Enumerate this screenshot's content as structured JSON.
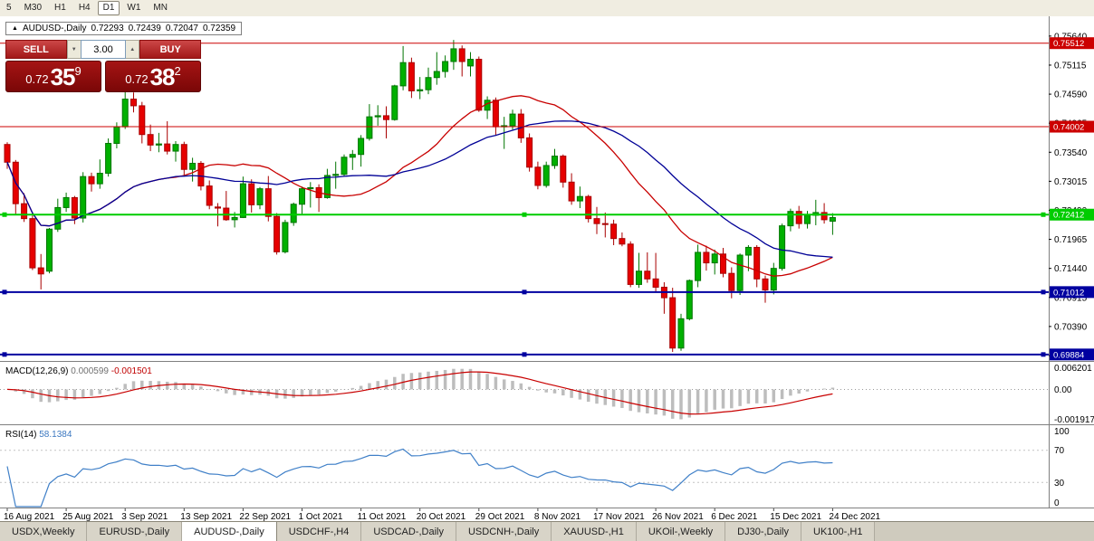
{
  "toolbar": {
    "timeframes": [
      "5",
      "M30",
      "H1",
      "H4",
      "D1",
      "W1",
      "MN"
    ],
    "active_index": 4
  },
  "chart_header": {
    "collapse_icon": "▲",
    "symbol": "AUDUSD-,Daily",
    "open": "0.72293",
    "high": "0.72439",
    "low": "0.72047",
    "close": "0.72359"
  },
  "trade_panel": {
    "sell_label": "SELL",
    "buy_label": "BUY",
    "volume": "3.00",
    "spinner_down_icon": "▼",
    "spinner_up_icon": "▲",
    "sell_price": {
      "prefix": "0.72",
      "big": "35",
      "sup": "9"
    },
    "buy_price": {
      "prefix": "0.72",
      "big": "38",
      "sup": "2"
    }
  },
  "chart_data": {
    "type": "candlestick",
    "symbol": "AUDUSD",
    "timeframe": "Daily",
    "ylim": [
      0.69783,
      0.75965
    ],
    "y_ticks": [
      "0.75640",
      "0.75115",
      "0.74590",
      "0.74065",
      "0.73540",
      "0.73015",
      "0.72490",
      "0.71965",
      "0.71440",
      "0.70915",
      "0.70390",
      "0.69865"
    ],
    "x_labels": [
      {
        "index": 0,
        "label": "16 Aug 2021"
      },
      {
        "index": 7,
        "label": "25 Aug 2021"
      },
      {
        "index": 14,
        "label": "3 Sep 2021"
      },
      {
        "index": 21,
        "label": "13 Sep 2021"
      },
      {
        "index": 28,
        "label": "22 Sep 2021"
      },
      {
        "index": 35,
        "label": "1 Oct 2021"
      },
      {
        "index": 42,
        "label": "11 Oct 2021"
      },
      {
        "index": 49,
        "label": "20 Oct 2021"
      },
      {
        "index": 56,
        "label": "29 Oct 2021"
      },
      {
        "index": 63,
        "label": "8 Nov 2021"
      },
      {
        "index": 70,
        "label": "17 Nov 2021"
      },
      {
        "index": 77,
        "label": "26 Nov 2021"
      },
      {
        "index": 84,
        "label": "6 Dec 2021"
      },
      {
        "index": 91,
        "label": "15 Dec 2021"
      },
      {
        "index": 98,
        "label": "24 Dec 2021"
      }
    ],
    "candles": [
      [
        0.7368,
        0.7372,
        0.7324,
        0.7336
      ],
      [
        0.7336,
        0.734,
        0.7242,
        0.7261
      ],
      [
        0.7261,
        0.728,
        0.7228,
        0.7234
      ],
      [
        0.7234,
        0.7243,
        0.7141,
        0.7145
      ],
      [
        0.7145,
        0.717,
        0.7106,
        0.7134
      ],
      [
        0.7139,
        0.7217,
        0.7135,
        0.7215
      ],
      [
        0.7215,
        0.727,
        0.721,
        0.7254
      ],
      [
        0.7254,
        0.7281,
        0.7246,
        0.7272
      ],
      [
        0.7272,
        0.7275,
        0.7224,
        0.7235
      ],
      [
        0.7235,
        0.7318,
        0.7227,
        0.731
      ],
      [
        0.731,
        0.7317,
        0.7283,
        0.7297
      ],
      [
        0.7297,
        0.7341,
        0.7288,
        0.7316
      ],
      [
        0.7316,
        0.7379,
        0.731,
        0.737
      ],
      [
        0.737,
        0.7408,
        0.7361,
        0.74
      ],
      [
        0.74,
        0.7478,
        0.7396,
        0.745
      ],
      [
        0.745,
        0.7462,
        0.7426,
        0.7438
      ],
      [
        0.7438,
        0.7445,
        0.737,
        0.7386
      ],
      [
        0.7386,
        0.7404,
        0.7356,
        0.7367
      ],
      [
        0.7367,
        0.7389,
        0.7354,
        0.7369
      ],
      [
        0.7369,
        0.741,
        0.735,
        0.7356
      ],
      [
        0.7356,
        0.7374,
        0.7337,
        0.7368
      ],
      [
        0.7368,
        0.7373,
        0.731,
        0.7323
      ],
      [
        0.7323,
        0.7344,
        0.7301,
        0.7334
      ],
      [
        0.7334,
        0.7338,
        0.7285,
        0.7293
      ],
      [
        0.7293,
        0.7303,
        0.7251,
        0.7258
      ],
      [
        0.7255,
        0.7262,
        0.722,
        0.7253
      ],
      [
        0.7253,
        0.7284,
        0.723,
        0.7232
      ],
      [
        0.7232,
        0.7246,
        0.7218,
        0.7236
      ],
      [
        0.7236,
        0.731,
        0.7235,
        0.7297
      ],
      [
        0.7297,
        0.7305,
        0.7245,
        0.7259
      ],
      [
        0.7259,
        0.7291,
        0.7251,
        0.7288
      ],
      [
        0.7288,
        0.7311,
        0.7229,
        0.7238
      ],
      [
        0.7238,
        0.7244,
        0.7169,
        0.7174
      ],
      [
        0.7174,
        0.7232,
        0.7171,
        0.7227
      ],
      [
        0.7227,
        0.7263,
        0.7221,
        0.726
      ],
      [
        0.726,
        0.7292,
        0.7242,
        0.7288
      ],
      [
        0.7288,
        0.73,
        0.7254,
        0.729
      ],
      [
        0.729,
        0.7296,
        0.7246,
        0.7272
      ],
      [
        0.7272,
        0.7324,
        0.727,
        0.7312
      ],
      [
        0.7312,
        0.7337,
        0.7288,
        0.7314
      ],
      [
        0.7314,
        0.735,
        0.731,
        0.7345
      ],
      [
        0.7345,
        0.7358,
        0.7322,
        0.735
      ],
      [
        0.735,
        0.7385,
        0.7328,
        0.7379
      ],
      [
        0.7379,
        0.7441,
        0.7375,
        0.7418
      ],
      [
        0.7418,
        0.7439,
        0.7402,
        0.742
      ],
      [
        0.742,
        0.7437,
        0.7379,
        0.7413
      ],
      [
        0.7413,
        0.7476,
        0.7411,
        0.7474
      ],
      [
        0.7474,
        0.7546,
        0.7466,
        0.7516
      ],
      [
        0.7516,
        0.7525,
        0.7452,
        0.7465
      ],
      [
        0.7465,
        0.749,
        0.745,
        0.7467
      ],
      [
        0.7467,
        0.7507,
        0.7459,
        0.7489
      ],
      [
        0.7489,
        0.7535,
        0.7476,
        0.75
      ],
      [
        0.75,
        0.7529,
        0.7489,
        0.7518
      ],
      [
        0.7518,
        0.7557,
        0.7503,
        0.7541
      ],
      [
        0.7541,
        0.7547,
        0.7491,
        0.7518
      ],
      [
        0.751,
        0.7535,
        0.7491,
        0.7522
      ],
      [
        0.7522,
        0.7527,
        0.7427,
        0.743
      ],
      [
        0.743,
        0.7455,
        0.7414,
        0.7448
      ],
      [
        0.7448,
        0.7453,
        0.7385,
        0.74
      ],
      [
        0.74,
        0.7418,
        0.736,
        0.7402
      ],
      [
        0.7402,
        0.7431,
        0.7395,
        0.7423
      ],
      [
        0.7423,
        0.7432,
        0.7371,
        0.738
      ],
      [
        0.738,
        0.7388,
        0.7319,
        0.7327
      ],
      [
        0.7327,
        0.7337,
        0.7287,
        0.7294
      ],
      [
        0.7294,
        0.7337,
        0.729,
        0.733
      ],
      [
        0.733,
        0.736,
        0.7324,
        0.7347
      ],
      [
        0.7347,
        0.735,
        0.729,
        0.73
      ],
      [
        0.73,
        0.7316,
        0.7259,
        0.7266
      ],
      [
        0.7266,
        0.7292,
        0.7253,
        0.7274
      ],
      [
        0.7274,
        0.7277,
        0.7227,
        0.7234
      ],
      [
        0.7234,
        0.7255,
        0.7206,
        0.7225
      ],
      [
        0.7225,
        0.7245,
        0.72,
        0.7224
      ],
      [
        0.7224,
        0.7232,
        0.7186,
        0.7198
      ],
      [
        0.7198,
        0.7209,
        0.7184,
        0.7188
      ],
      [
        0.7188,
        0.7193,
        0.711,
        0.7115
      ],
      [
        0.7115,
        0.7172,
        0.7109,
        0.7139
      ],
      [
        0.7139,
        0.7173,
        0.7118,
        0.7125
      ],
      [
        0.7125,
        0.7172,
        0.71,
        0.711
      ],
      [
        0.711,
        0.7119,
        0.7062,
        0.7091
      ],
      [
        0.7091,
        0.7109,
        0.6993,
        0.7
      ],
      [
        0.7,
        0.7062,
        0.6995,
        0.7053
      ],
      [
        0.7053,
        0.7124,
        0.705,
        0.7122
      ],
      [
        0.7122,
        0.7187,
        0.711,
        0.7173
      ],
      [
        0.7173,
        0.7185,
        0.714,
        0.7154
      ],
      [
        0.7154,
        0.7178,
        0.7133,
        0.717
      ],
      [
        0.717,
        0.7181,
        0.7128,
        0.7135
      ],
      [
        0.7135,
        0.7146,
        0.709,
        0.7104
      ],
      [
        0.7104,
        0.7171,
        0.7096,
        0.7168
      ],
      [
        0.7168,
        0.7186,
        0.7139,
        0.7182
      ],
      [
        0.7182,
        0.7186,
        0.711,
        0.7125
      ],
      [
        0.7125,
        0.7131,
        0.7082,
        0.7105
      ],
      [
        0.7105,
        0.7154,
        0.7097,
        0.7144
      ],
      [
        0.7144,
        0.7225,
        0.714,
        0.7221
      ],
      [
        0.7221,
        0.7252,
        0.7211,
        0.7247
      ],
      [
        0.7247,
        0.7257,
        0.7216,
        0.7225
      ],
      [
        0.7225,
        0.7248,
        0.7216,
        0.724
      ],
      [
        0.724,
        0.7268,
        0.7222,
        0.7245
      ],
      [
        0.7245,
        0.7262,
        0.7225,
        0.7232
      ],
      [
        0.72293,
        0.72439,
        0.72047,
        0.72359
      ]
    ],
    "colors": {
      "background": "#FFFFFF",
      "up_fill": "#00B000",
      "up_stroke": "#007500",
      "down_fill": "#E60000",
      "down_stroke": "#A80000"
    },
    "moving_averages": [
      {
        "name": "ma-fast-line",
        "period": 20,
        "color": "#C80000"
      },
      {
        "name": "ma-slow-line",
        "period": 30,
        "color": "#000096"
      }
    ],
    "hlines": [
      {
        "label": "0.75512",
        "price": 0.75512,
        "color": "#CC0000",
        "width": 1,
        "selected": false
      },
      {
        "label": "0.74002",
        "price": 0.74002,
        "color": "#CC0000",
        "width": 1,
        "selected": false
      },
      {
        "label": "0.72412",
        "price": 0.72412,
        "color": "#00CC00",
        "width": 2,
        "selected": true
      },
      {
        "label": "0.71012",
        "price": 0.71012,
        "color": "#0000A0",
        "width": 2,
        "selected": true
      },
      {
        "label": "0.69884",
        "price": 0.69884,
        "color": "#0000A0",
        "width": 2,
        "selected": true
      }
    ],
    "indicators": {
      "macd": {
        "name": "MACD(12,26,9)",
        "params": [
          12,
          26,
          9
        ],
        "value": "0.000599",
        "signal_value": "-0.001501",
        "scale_labels": [
          "0.006201",
          "0.00",
          "-0.001917"
        ],
        "histogram_color": "#BDBDBD",
        "signal_color": "#C80000"
      },
      "rsi": {
        "name": "RSI(14)",
        "period": 14,
        "value": "58.1384",
        "scale_labels": [
          "100",
          "70",
          "30",
          "0"
        ],
        "levels": [
          70,
          30
        ],
        "color": "#4080C8"
      }
    }
  },
  "bottom_tabs": {
    "active_index": 2,
    "items": [
      "USDX,Weekly",
      "EURUSD-,Daily",
      "AUDUSD-,Daily",
      "USDCHF-,H4",
      "USDCAD-,Daily",
      "USDCNH-,Daily",
      "XAUUSD-,H1",
      "UKOil-,Weekly",
      "DJ30-,Daily",
      "UK100-,H1"
    ]
  }
}
